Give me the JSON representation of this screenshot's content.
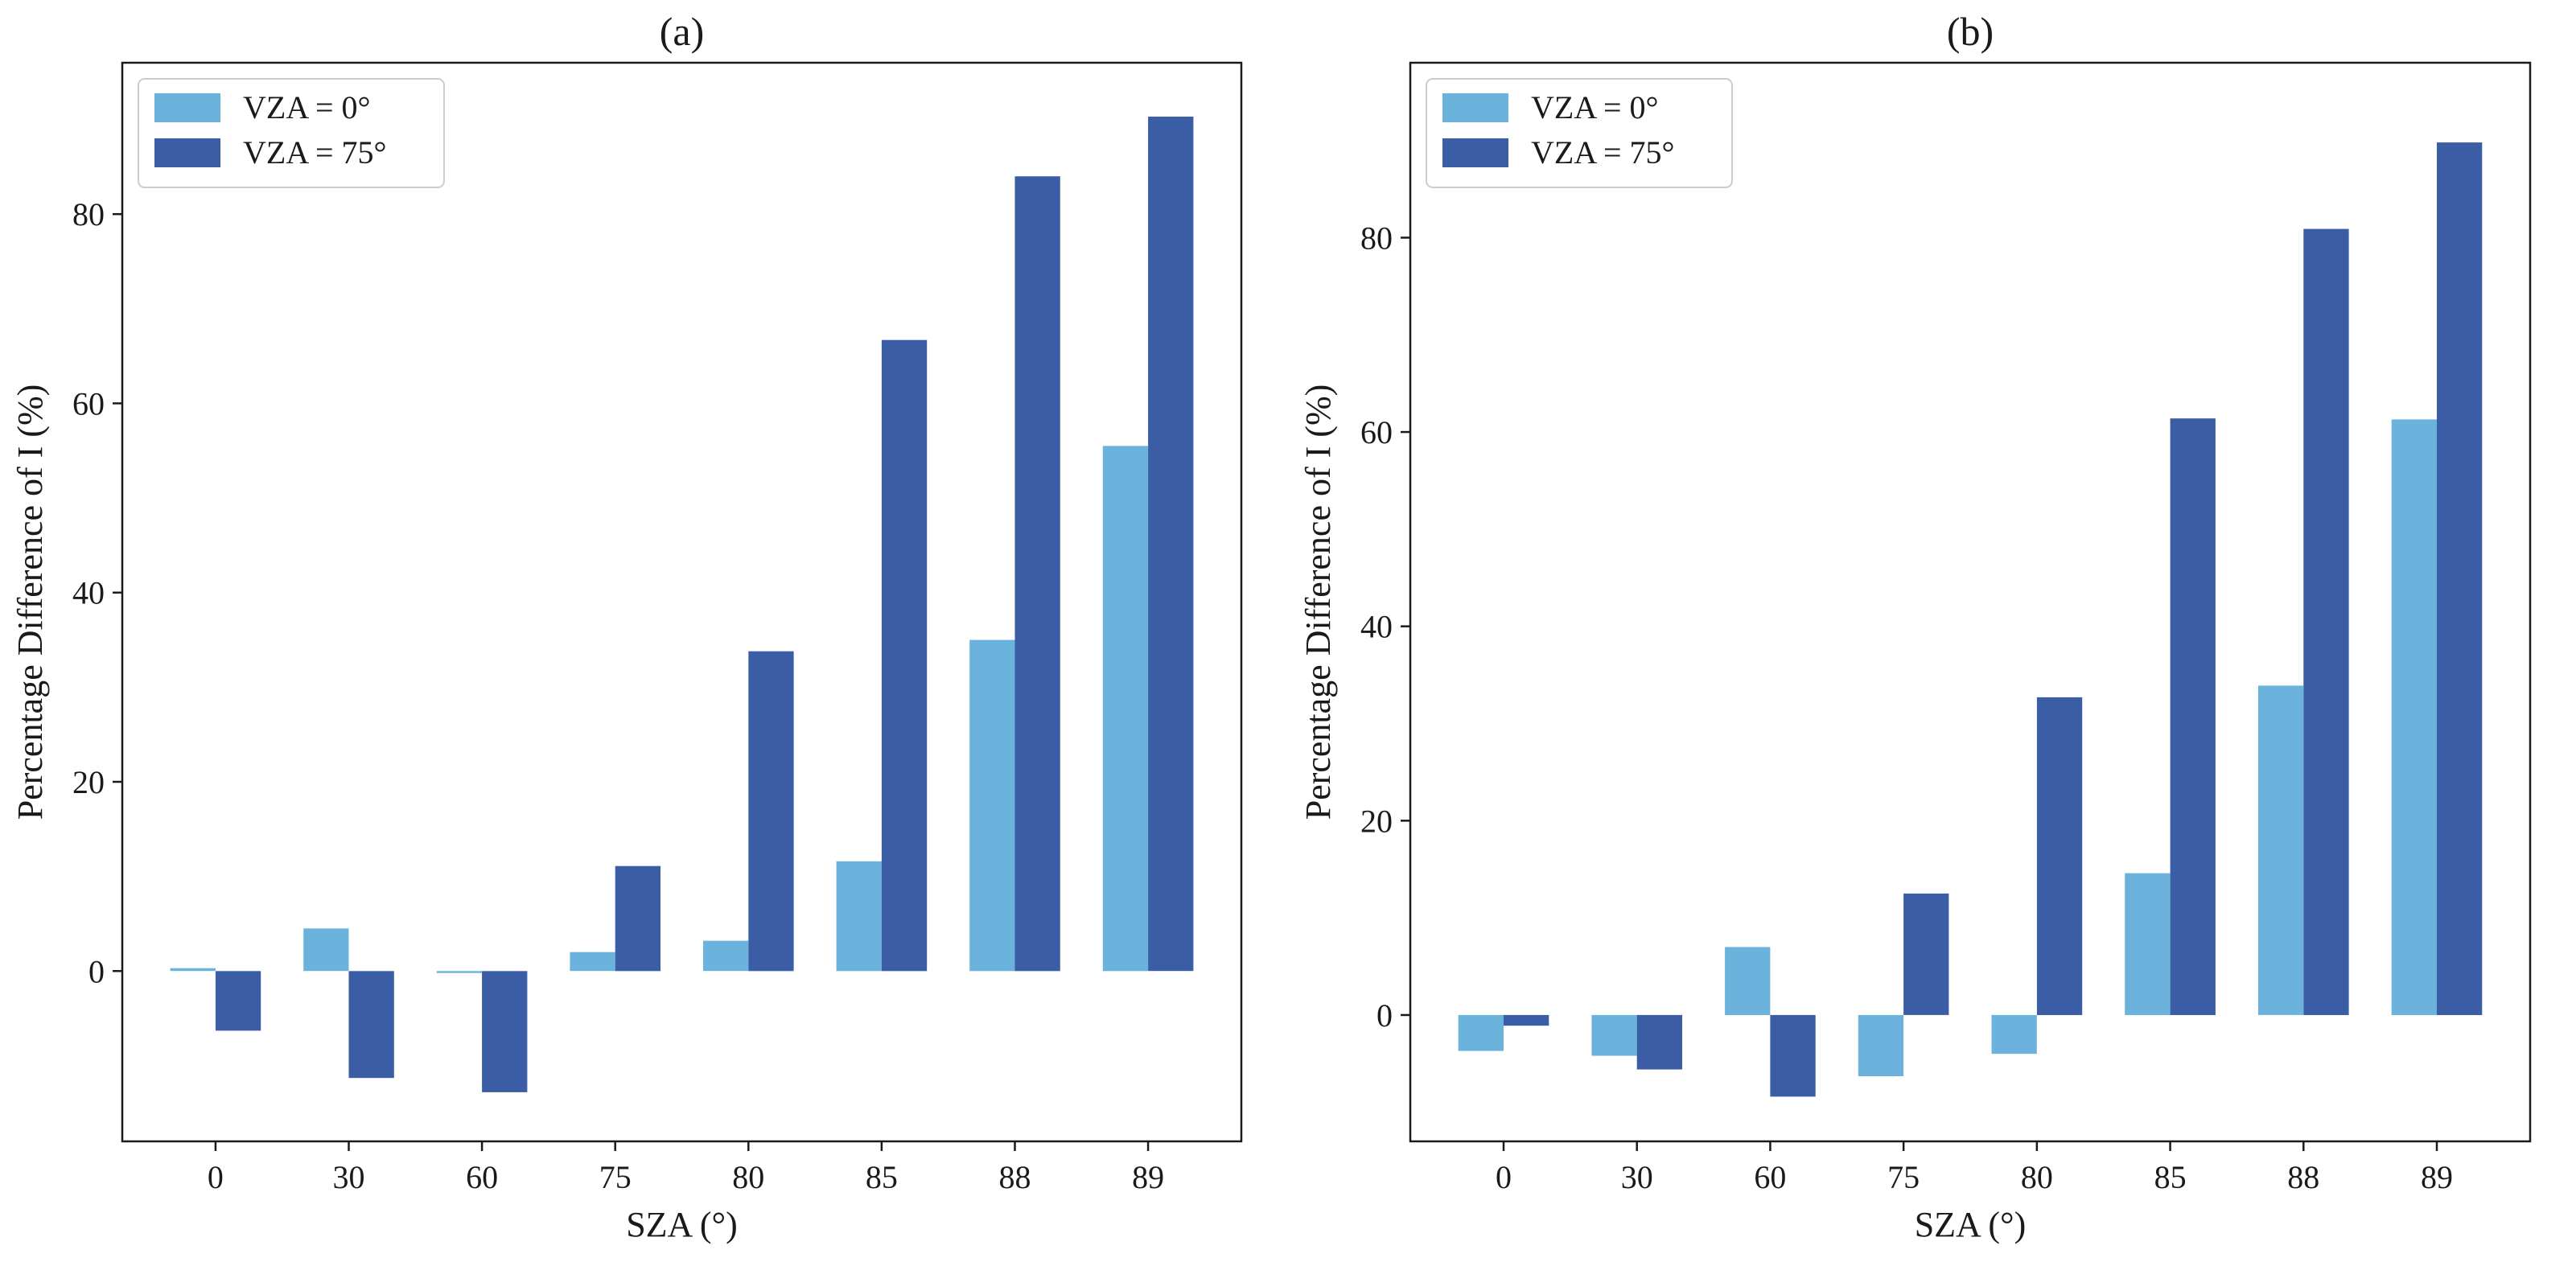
{
  "chart_data": [
    {
      "type": "bar",
      "title": "(a)",
      "xlabel": "SZA (°)",
      "ylabel": "Percentage Difference of I (%)",
      "categories": [
        "0",
        "30",
        "60",
        "75",
        "80",
        "85",
        "88",
        "89"
      ],
      "series": [
        {
          "name": "VZA = 0°",
          "color": "#6BB3DC",
          "values": [
            0.3,
            4.5,
            -0.2,
            2.0,
            3.2,
            11.6,
            35.0,
            55.5
          ]
        },
        {
          "name": "VZA = 75°",
          "color": "#3A5DA6",
          "values": [
            -6.3,
            -11.3,
            -12.8,
            11.1,
            33.8,
            66.7,
            84.0,
            90.3
          ]
        }
      ],
      "ylim": [
        -18,
        96
      ],
      "yticks": [
        0,
        20,
        40,
        60,
        80
      ],
      "ytick_labels": [
        "0",
        "20",
        "40",
        "60",
        "80"
      ],
      "legend_position": "top-left"
    },
    {
      "type": "bar",
      "title": "(b)",
      "xlabel": "SZA (°)",
      "ylabel": "Percentage Difference of I (%)",
      "categories": [
        "0",
        "30",
        "60",
        "75",
        "80",
        "85",
        "88",
        "89"
      ],
      "series": [
        {
          "name": "VZA = 0°",
          "color": "#6BB3DC",
          "values": [
            -3.7,
            -4.2,
            7.0,
            -6.3,
            -4.0,
            14.6,
            33.9,
            61.3
          ]
        },
        {
          "name": "VZA = 75°",
          "color": "#3A5DA6",
          "values": [
            -1.1,
            -5.6,
            -8.4,
            12.5,
            32.7,
            61.4,
            80.9,
            89.8
          ]
        }
      ],
      "ylim": [
        -13,
        98
      ],
      "yticks": [
        0,
        20,
        40,
        60,
        80
      ],
      "ytick_labels": [
        "0",
        "20",
        "40",
        "60",
        "80"
      ],
      "legend_position": "top-left"
    }
  ]
}
